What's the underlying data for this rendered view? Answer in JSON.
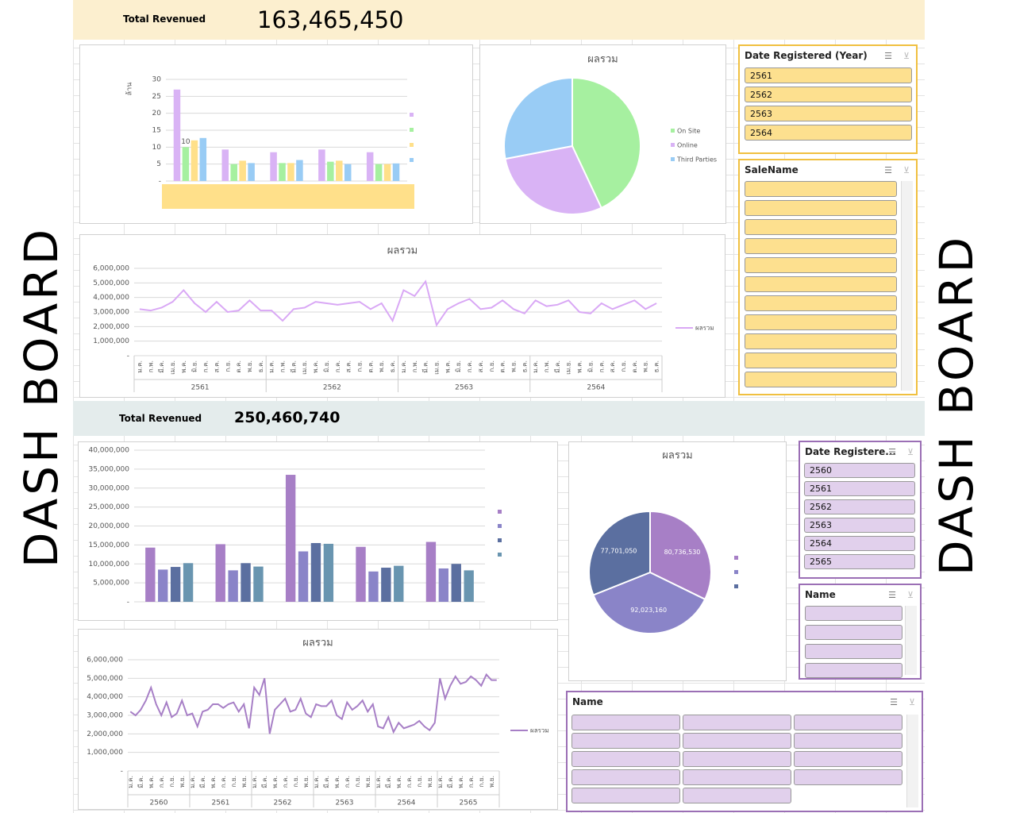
{
  "side_labels": [
    "DASH BOARD",
    "DASH BOARD"
  ],
  "dashboard_1": {
    "kpi_label": "Total Revenued",
    "kpi_value": "163,465,450",
    "slicers": [
      {
        "title": "Date Registered (Year)",
        "items": [
          "2561",
          "2562",
          "2563",
          "2564"
        ]
      },
      {
        "title": "SaleName"
      }
    ]
  },
  "dashboard_2": {
    "kpi_label": "Total Revenued",
    "kpi_value": "250,460,740",
    "slicers": [
      {
        "title": "Date Registere...",
        "items": [
          "2560",
          "2561",
          "2562",
          "2563",
          "2564",
          "2565"
        ]
      },
      {
        "title": "Name"
      },
      {
        "title": "Name"
      }
    ]
  },
  "chart_data": [
    {
      "type": "bar",
      "y_label": "ล้าน",
      "categories": [
        null,
        null,
        null,
        null,
        null
      ],
      "series": [
        {
          "color": "#d9b3f5",
          "values": [
            27,
            9.3,
            8.5,
            9.3,
            8.5
          ]
        },
        {
          "color": "#a6f0a0",
          "values": [
            10,
            5,
            5.3,
            5.7,
            5
          ],
          "value_labels": [
            "10",
            null,
            null,
            null,
            null
          ]
        },
        {
          "color": "#ffe08a",
          "values": [
            12,
            6,
            5.3,
            6,
            5
          ]
        },
        {
          "color": "#99ccf5",
          "values": [
            12.7,
            5.3,
            6.2,
            5,
            5.2
          ]
        }
      ],
      "ylim": [
        0,
        30
      ],
      "yticks": [
        {
          "value": 0,
          "label": "-"
        },
        5,
        10,
        15,
        20,
        25,
        30
      ],
      "grid": true
    },
    {
      "type": "pie",
      "title": "ผลรวม",
      "categories": [
        "On Site",
        "Online",
        "Third Parties"
      ],
      "values": [
        43,
        29,
        28
      ],
      "colors": [
        "#a6f0a0",
        "#d9b3f5",
        "#99ccf5"
      ]
    },
    {
      "type": "line",
      "title": "ผลรวม",
      "categories": [
        "ม.ค.",
        "ก.พ.",
        "มี.ค.",
        "เม.ย.",
        "พ.ค.",
        "มิ.ย.",
        "ก.ค.",
        "ส.ค.",
        "ก.ย.",
        "ต.ค.",
        "พ.ย.",
        "ธ.ค.",
        "ม.ค.",
        "ก.พ.",
        "มี.ค.",
        "เม.ย.",
        "พ.ค.",
        "มิ.ย.",
        "ก.ค.",
        "ส.ค.",
        "ก.ย.",
        "ต.ค.",
        "พ.ย.",
        "ธ.ค.",
        "ม.ค.",
        "ก.พ.",
        "มี.ค.",
        "เม.ย.",
        "พ.ค.",
        "มิ.ย.",
        "ก.ค.",
        "ส.ค.",
        "ก.ย.",
        "ต.ค.",
        "พ.ย.",
        "ธ.ค.",
        "ม.ค.",
        "ก.พ.",
        "มี.ค.",
        "เม.ย.",
        "พ.ค.",
        "มิ.ย.",
        "ก.ค.",
        "ส.ค.",
        "ก.ย.",
        "ต.ค.",
        "พ.ย.",
        "ธ.ค."
      ],
      "category_groups": [
        "2561",
        "2562",
        "2563",
        "2564"
      ],
      "series": [
        {
          "name": "ผลรวม",
          "color": "#d9a8f5",
          "values": [
            3200000,
            3100000,
            3300000,
            3700000,
            4500000,
            3600000,
            3000000,
            3700000,
            3000000,
            3100000,
            3800000,
            3100000,
            3100000,
            2400000,
            3200000,
            3300000,
            3700000,
            3600000,
            3500000,
            3600000,
            3700000,
            3200000,
            3600000,
            2400000,
            4500000,
            4100000,
            5100000,
            2100000,
            3200000,
            3600000,
            3900000,
            3200000,
            3300000,
            3800000,
            3200000,
            2900000,
            3800000,
            3400000,
            3500000,
            3800000,
            3000000,
            2900000,
            3600000,
            3200000,
            3500000,
            3800000,
            3200000,
            3600000
          ]
        }
      ],
      "ylim": [
        0,
        6000000
      ],
      "yticks": [
        {
          "value": 0,
          "label": "-"
        },
        {
          "value": 1000000,
          "label": "1,000,000"
        },
        {
          "value": 2000000,
          "label": "2,000,000"
        },
        {
          "value": 3000000,
          "label": "3,000,000"
        },
        {
          "value": 4000000,
          "label": "4,000,000"
        },
        {
          "value": 5000000,
          "label": "5,000,000"
        },
        {
          "value": 6000000,
          "label": "6,000,000"
        }
      ],
      "grid": true
    },
    {
      "type": "bar",
      "categories": [
        null,
        null,
        null,
        null,
        null
      ],
      "series": [
        {
          "color": "#a77fc6",
          "values": [
            14300000,
            15200000,
            33500000,
            14500000,
            15800000
          ]
        },
        {
          "color": "#8a84c8",
          "values": [
            8500000,
            8300000,
            13300000,
            8000000,
            8800000
          ]
        },
        {
          "color": "#5b6fa0",
          "values": [
            9200000,
            10200000,
            15500000,
            9000000,
            10000000
          ]
        },
        {
          "color": "#6995b0",
          "values": [
            10200000,
            9300000,
            15300000,
            9500000,
            8300000
          ]
        }
      ],
      "ylim": [
        0,
        40000000
      ],
      "yticks": [
        {
          "value": 0,
          "label": "-"
        },
        {
          "value": 5000000,
          "label": "5,000,000"
        },
        {
          "value": 10000000,
          "label": "10,000,000"
        },
        {
          "value": 15000000,
          "label": "15,000,000"
        },
        {
          "value": 20000000,
          "label": "20,000,000"
        },
        {
          "value": 25000000,
          "label": "25,000,000"
        },
        {
          "value": 30000000,
          "label": "30,000,000"
        },
        {
          "value": 35000000,
          "label": "35,000,000"
        },
        {
          "value": 40000000,
          "label": "40,000,000"
        }
      ],
      "grid": true
    },
    {
      "type": "pie",
      "title": "ผลรวม",
      "values": [
        80736530,
        92023160,
        77701050
      ],
      "value_labels": [
        "80,736,530",
        "92,023,160",
        "77,701,050"
      ],
      "colors": [
        "#a77fc6",
        "#8a84c8",
        "#5b6fa0"
      ]
    },
    {
      "type": "line",
      "title": "ผลรวม",
      "categories": [
        "ม.ค.",
        null,
        "มี.ค.",
        null,
        "พ.ค.",
        null,
        "ก.ค.",
        null,
        "ก.ย.",
        null,
        "พ.ย.",
        null,
        "ม.ค.",
        null,
        "มี.ค.",
        null,
        "พ.ค.",
        null,
        "ก.ค.",
        null,
        "ก.ย.",
        null,
        "พ.ย.",
        null,
        "ม.ค.",
        null,
        "มี.ค.",
        null,
        "พ.ค.",
        null,
        "ก.ค.",
        null,
        "ก.ย.",
        null,
        "พ.ย.",
        null,
        "ม.ค.",
        null,
        "มี.ค.",
        null,
        "พ.ค.",
        null,
        "ก.ค.",
        null,
        "ก.ย.",
        null,
        "พ.ย.",
        null,
        "ม.ค.",
        null,
        "มี.ค.",
        null,
        "พ.ค.",
        null,
        "ก.ค.",
        null,
        "ก.ย.",
        null,
        "พ.ย.",
        null,
        "ม.ค.",
        null,
        "มี.ค.",
        null,
        "พ.ค.",
        null,
        "ก.ค.",
        null,
        "ก.ย.",
        null,
        "พ.ย.",
        null
      ],
      "category_groups": [
        "2560",
        "2561",
        "2562",
        "2563",
        "2564",
        "2565"
      ],
      "series": [
        {
          "name": "ผลรวม",
          "color": "#a77fc6",
          "values": [
            3200000,
            3000000,
            3300000,
            3800000,
            4500000,
            3600000,
            3000000,
            3700000,
            2900000,
            3100000,
            3800000,
            3000000,
            3100000,
            2400000,
            3200000,
            3300000,
            3600000,
            3600000,
            3400000,
            3600000,
            3700000,
            3200000,
            3600000,
            2300000,
            4500000,
            4100000,
            5000000,
            2000000,
            3300000,
            3600000,
            3900000,
            3200000,
            3300000,
            3900000,
            3100000,
            2900000,
            3600000,
            3500000,
            3500000,
            3800000,
            3000000,
            2800000,
            3700000,
            3300000,
            3500000,
            3800000,
            3200000,
            3600000,
            2400000,
            2300000,
            2900000,
            2100000,
            2600000,
            2300000,
            2400000,
            2500000,
            2700000,
            2400000,
            2200000,
            2600000,
            5000000,
            3900000,
            4600000,
            5100000,
            4700000,
            4800000,
            5100000,
            4900000,
            4600000,
            5200000,
            4900000,
            4900000
          ]
        }
      ],
      "ylim": [
        0,
        6000000
      ],
      "yticks": [
        {
          "value": 0,
          "label": "-"
        },
        {
          "value": 1000000,
          "label": "1,000,000"
        },
        {
          "value": 2000000,
          "label": "2,000,000"
        },
        {
          "value": 3000000,
          "label": "3,000,000"
        },
        {
          "value": 4000000,
          "label": "4,000,000"
        },
        {
          "value": 5000000,
          "label": "5,000,000"
        },
        {
          "value": 6000000,
          "label": "6,000,000"
        }
      ],
      "grid": true
    }
  ]
}
